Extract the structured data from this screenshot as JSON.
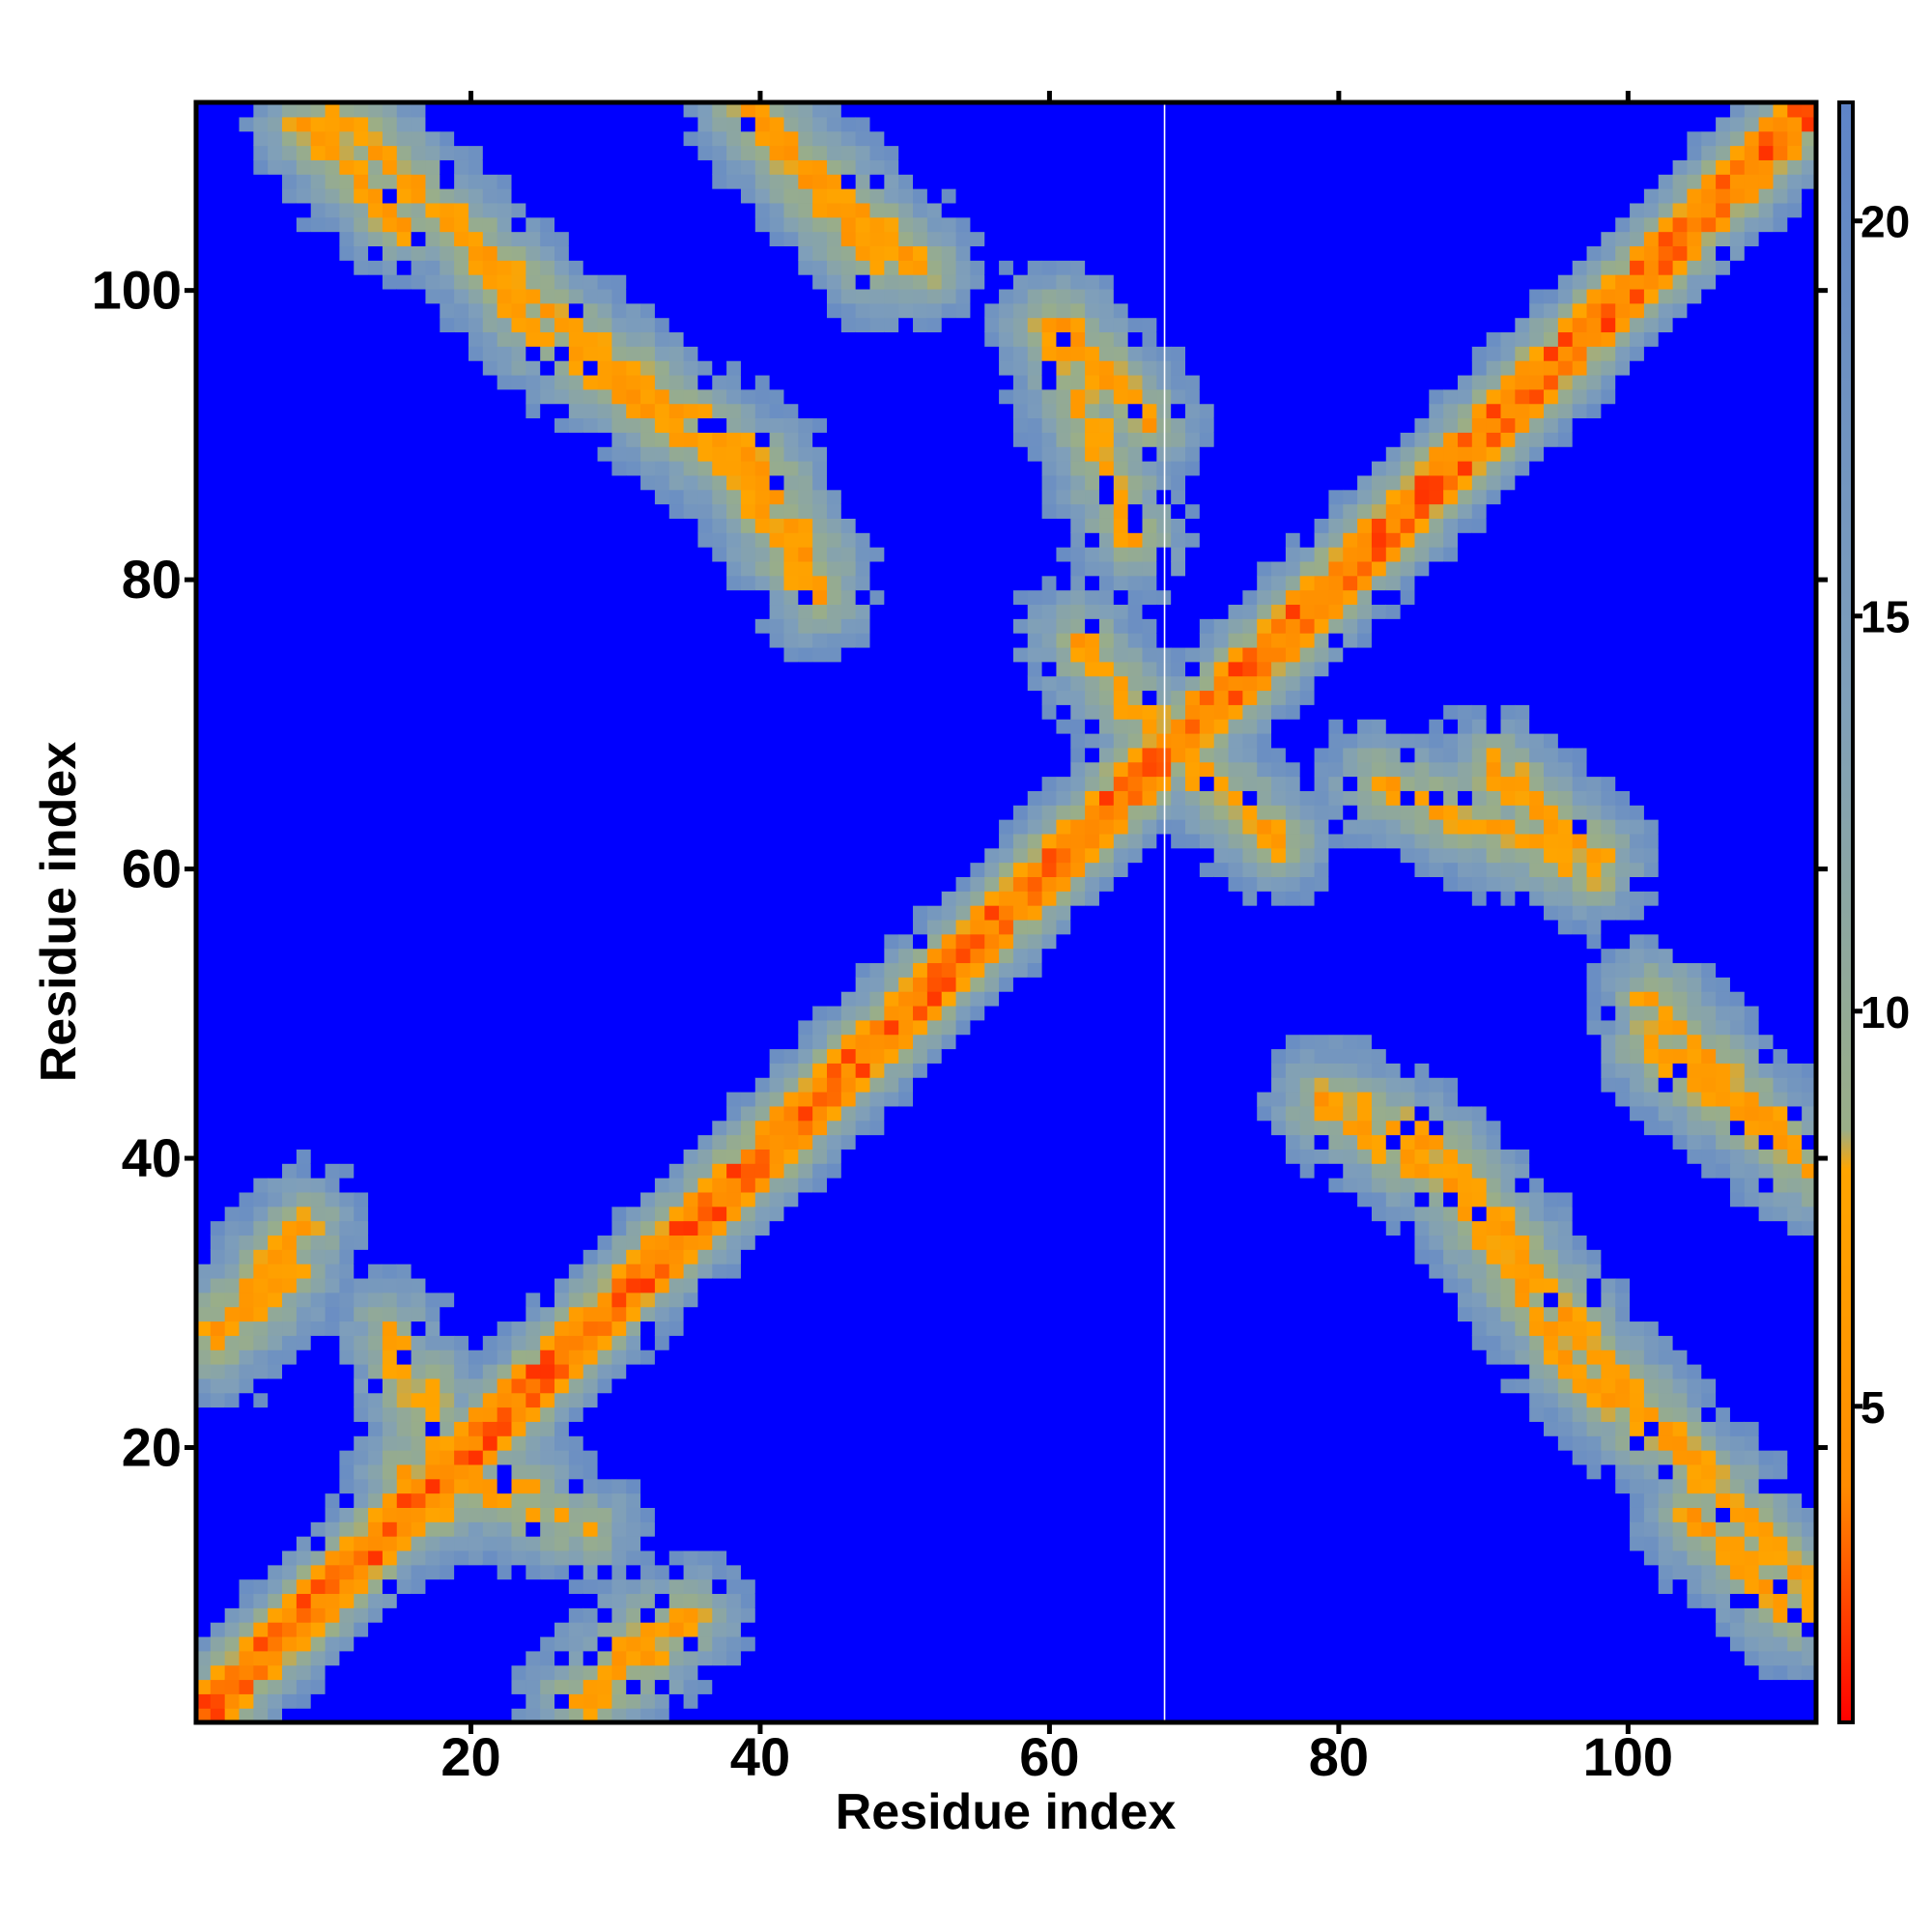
{
  "chart_data": {
    "type": "heatmap",
    "title": "",
    "xlabel": "Residue index",
    "ylabel": "Residue index",
    "n_residues": 113,
    "xlim": [
      1,
      113
    ],
    "ylim": [
      1,
      113
    ],
    "x_ticks": [
      20,
      40,
      60,
      80,
      100
    ],
    "y_ticks": [
      20,
      40,
      60,
      80,
      100
    ],
    "colorbar": {
      "ticks": [
        5,
        10,
        15,
        20
      ],
      "range": [
        1,
        21.5
      ],
      "colors": [
        "#ff0000",
        "#ff8c00",
        "#ffa500",
        "#9aae88",
        "#7f9fba",
        "#5e84c8"
      ],
      "stops": [
        1,
        4,
        8,
        8.5,
        14,
        21.5
      ]
    },
    "saturation_color": "#0000ff",
    "saturation_threshold": 19,
    "gap_column": 68,
    "structure": {
      "diagonal": "contact distance ~3.8 at |i-j|=1, rising outward",
      "contact_bands": [
        {
          "from": [
            2,
            28
          ],
          "to": [
            8,
            35
          ],
          "value": 6
        },
        {
          "from": [
            10,
            113
          ],
          "to": [
            26,
            98
          ],
          "value": 6
        },
        {
          "from": [
            26,
            98
          ],
          "to": [
            40,
            88
          ],
          "value": 6
        },
        {
          "from": [
            40,
            88
          ],
          "to": [
            44,
            80
          ],
          "value": 6
        },
        {
          "from": [
            39,
            113
          ],
          "to": [
            51,
            102
          ],
          "value": 6
        },
        {
          "from": [
            61,
            98
          ],
          "to": [
            67,
            91
          ],
          "value": 6
        },
        {
          "from": [
            62,
            76
          ],
          "to": [
            68,
            69
          ],
          "value": 6
        },
        {
          "from": [
            68,
            69
          ],
          "to": [
            76,
            62
          ],
          "value": 6
        },
        {
          "from": [
            83,
            66
          ],
          "to": [
            98,
            60
          ],
          "value": 6
        },
        {
          "from": [
            79,
            44
          ],
          "to": [
            88,
            38
          ],
          "value": 6
        },
        {
          "from": [
            88,
            38
          ],
          "to": [
            97,
            25
          ],
          "value": 6
        },
        {
          "from": [
            97,
            25
          ],
          "to": [
            103,
            20
          ],
          "value": 6
        },
        {
          "from": [
            102,
            48
          ],
          "to": [
            113,
            39
          ],
          "value": 6
        },
        {
          "from": [
            105,
            15
          ],
          "to": [
            112,
            8
          ],
          "value": 6
        },
        {
          "from": [
            27,
            2
          ],
          "to": [
            32,
            7
          ],
          "value": 6
        },
        {
          "from": [
            15,
            18
          ],
          "to": [
            28,
            14
          ],
          "value": 7
        },
        {
          "from": [
            17,
            15
          ],
          "to": [
            17,
            24
          ],
          "value": 7
        }
      ]
    }
  }
}
